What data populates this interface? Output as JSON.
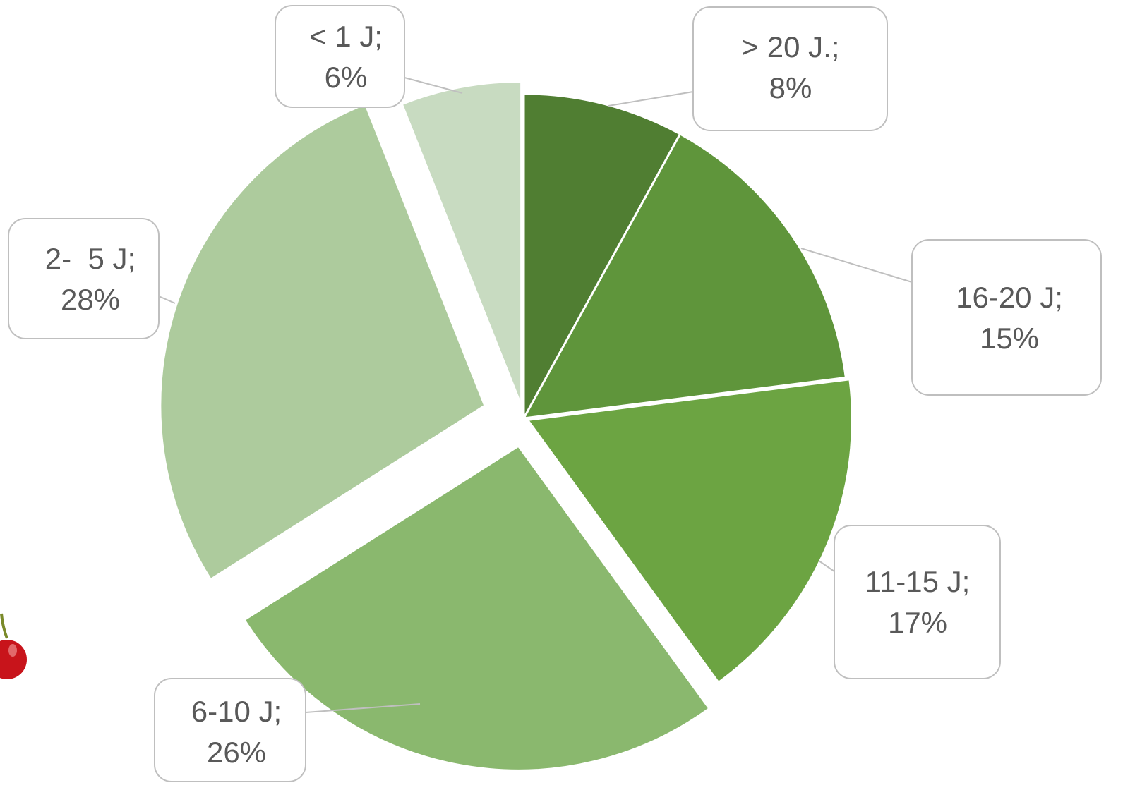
{
  "chart_data": {
    "type": "pie",
    "categories": [
      "> 20 J.;",
      "16-20 J;",
      "11-15 J;",
      "6-10 J;",
      "2-  5 J;",
      "< 1 J;"
    ],
    "values": [
      8,
      15,
      17,
      26,
      28,
      6
    ],
    "value_labels": [
      "8%",
      "15%",
      "17%",
      "26%",
      "28%",
      "6%"
    ],
    "colors": [
      "#507e32",
      "#5f953b",
      "#6ca442",
      "#8ab86e",
      "#adcb9d",
      "#c8dbc1"
    ]
  }
}
